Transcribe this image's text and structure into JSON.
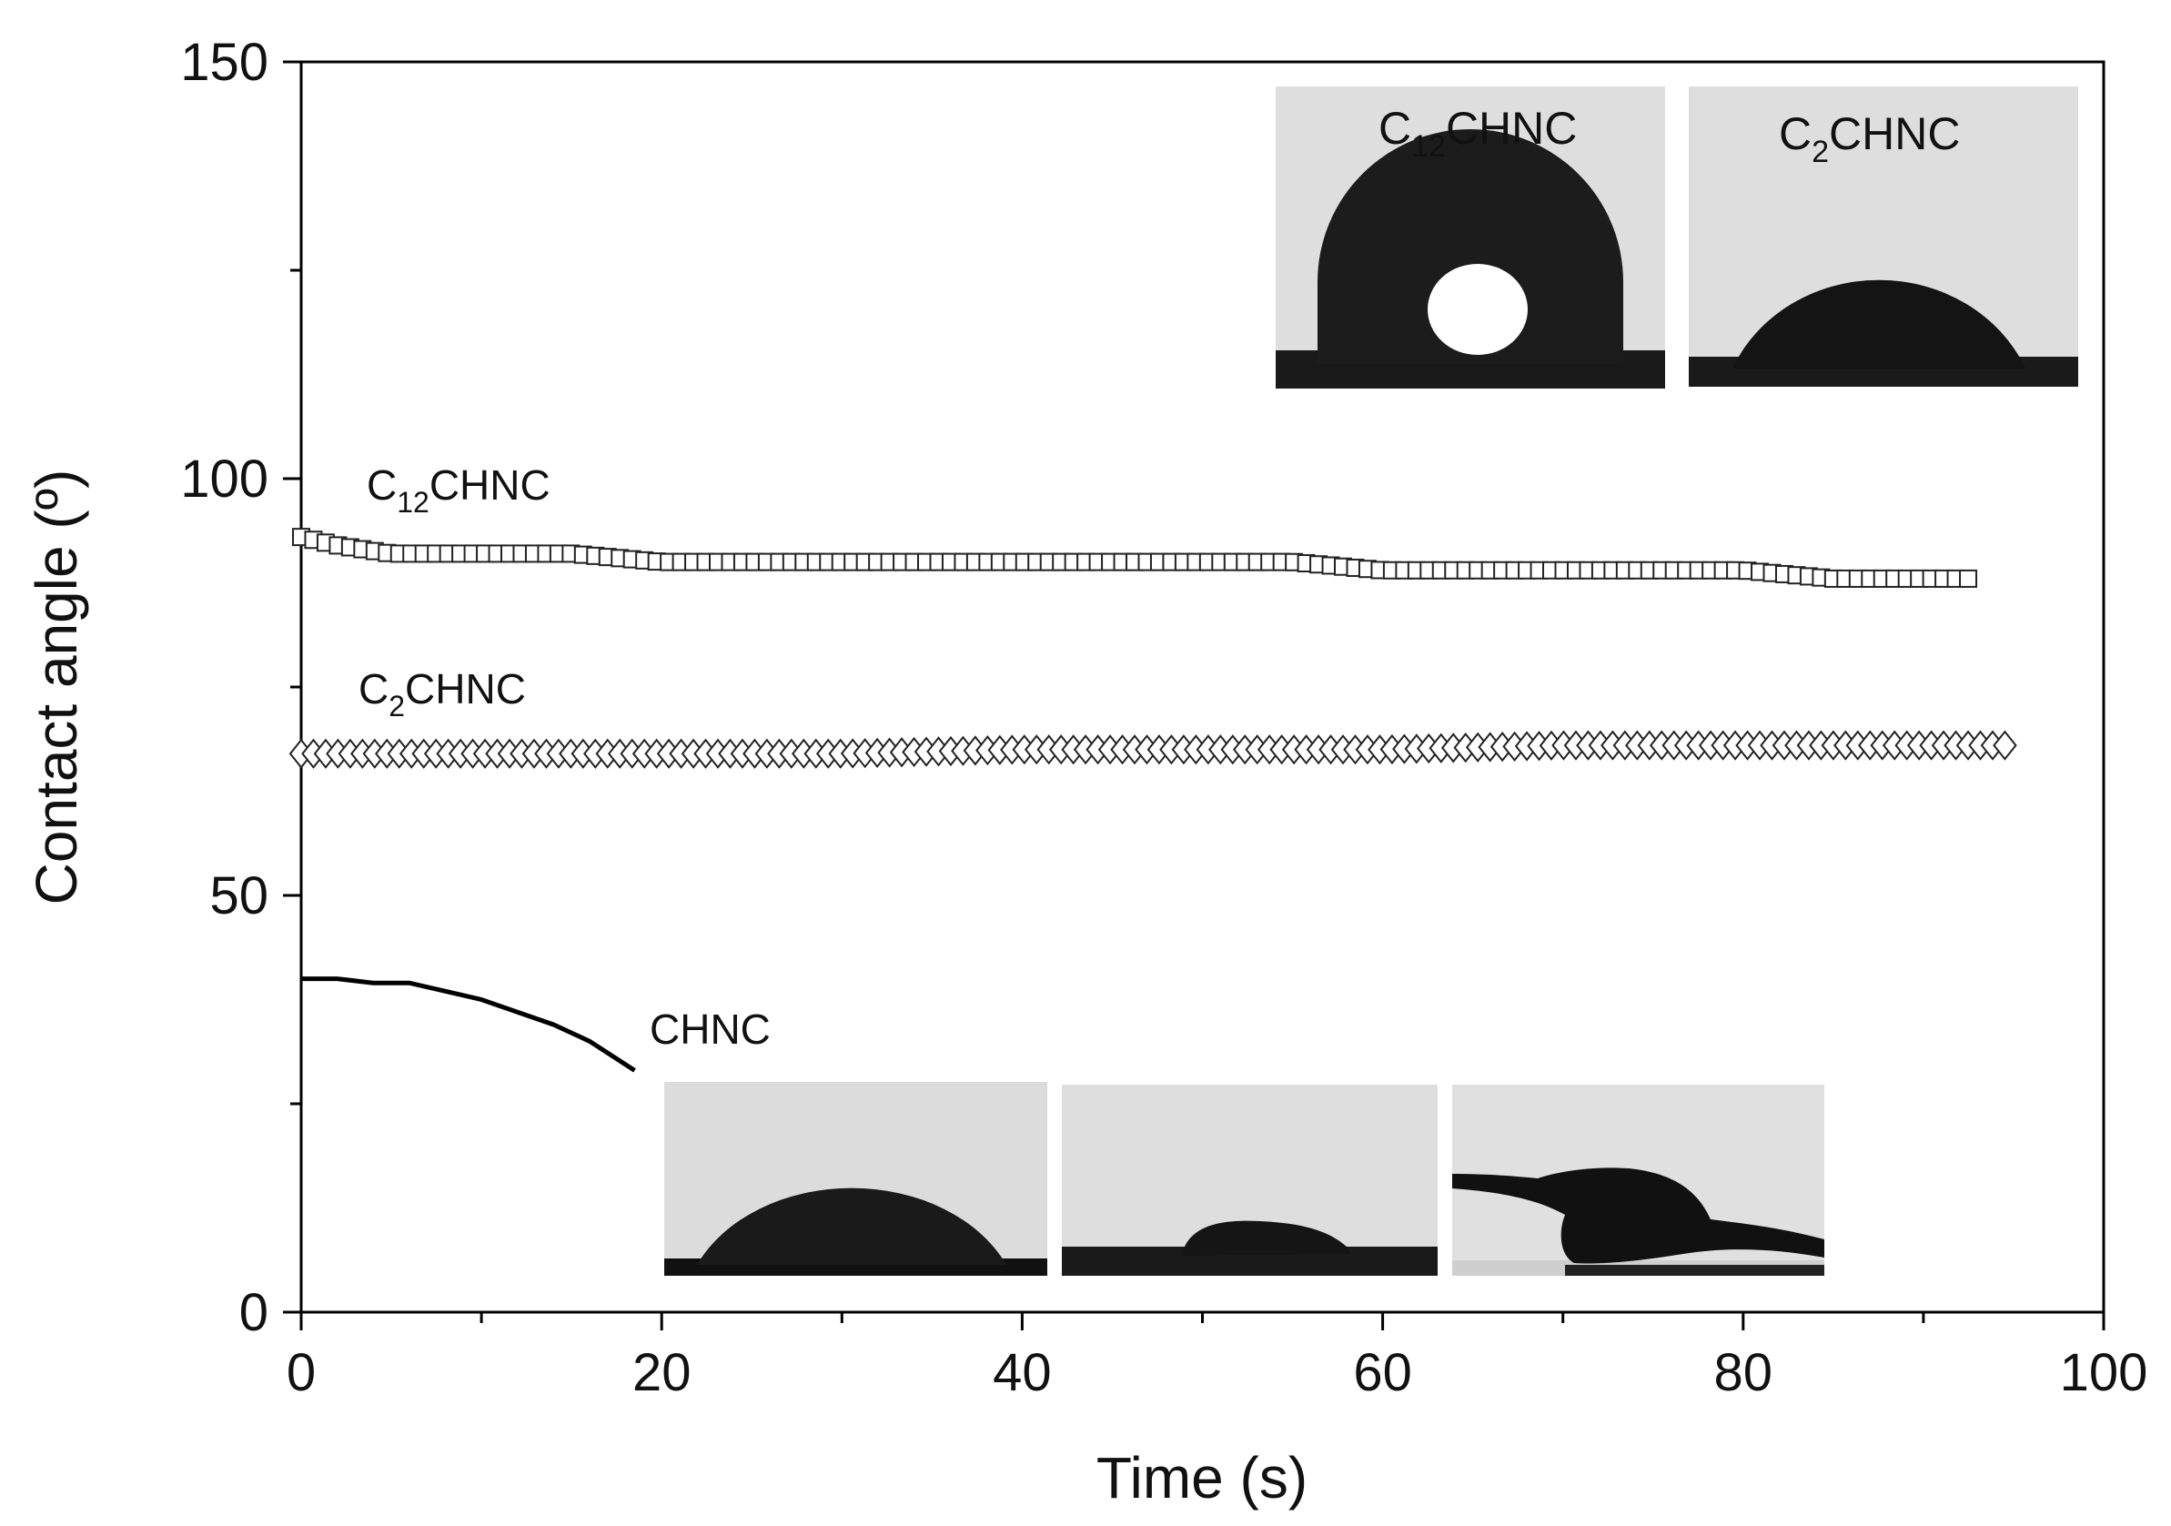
{
  "chart_data": {
    "type": "scatter",
    "xlabel": "Time (s)",
    "ylabel": "Contact angle (º)",
    "xlim": [
      0,
      100
    ],
    "ylim": [
      0,
      150
    ],
    "x_ticks": [
      "0",
      "20",
      "40",
      "60",
      "80",
      "100"
    ],
    "y_ticks": [
      "0",
      "50",
      "100",
      "150"
    ],
    "grid": false,
    "series": [
      {
        "name": "C12CHNC",
        "label_main": "C",
        "label_sub": "12",
        "label_rest": "CHNC",
        "marker": "open-square",
        "x": [
          0,
          2,
          5,
          10,
          15,
          20,
          25,
          30,
          35,
          40,
          45,
          50,
          55,
          60,
          65,
          70,
          75,
          80,
          85,
          90,
          92.5
        ],
        "y": [
          93,
          92,
          91,
          91,
          91,
          90,
          90,
          90,
          90,
          90,
          90,
          90,
          90,
          89,
          89,
          89,
          89,
          89,
          88,
          88,
          88
        ]
      },
      {
        "name": "C2CHNC",
        "label_main": "C",
        "label_sub": "2",
        "label_rest": "CHNC",
        "marker": "open-diamond",
        "x": [
          0,
          10,
          20,
          30,
          40,
          50,
          60,
          70,
          80,
          90,
          95
        ],
        "y": [
          67,
          67,
          67,
          67,
          67.5,
          67.5,
          67.5,
          68,
          68,
          68,
          68
        ]
      },
      {
        "name": "CHNC",
        "label_main": "CHNC",
        "label_sub": "",
        "label_rest": "",
        "marker": "line",
        "x": [
          0,
          2,
          4,
          6,
          8,
          10,
          12,
          14,
          16,
          18.5
        ],
        "y": [
          40,
          40,
          39.5,
          39.5,
          38.5,
          37.5,
          36,
          34.5,
          32.5,
          29
        ]
      }
    ],
    "insets": [
      {
        "label_main": "C",
        "label_sub": "12",
        "label_rest": "CHNC"
      },
      {
        "label_main": "C",
        "label_sub": "2",
        "label_rest": "CHNC"
      }
    ]
  }
}
